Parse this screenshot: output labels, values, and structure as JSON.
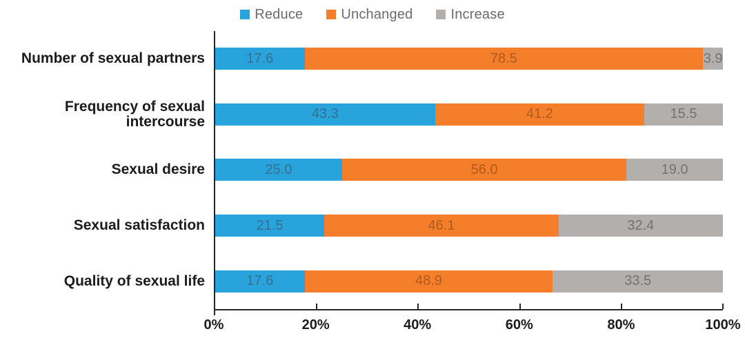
{
  "chart_data": {
    "type": "bar",
    "orientation": "horizontal",
    "stacked": true,
    "title": "",
    "xlabel": "",
    "ylabel": "",
    "xlim": [
      0,
      100
    ],
    "grid": false,
    "legend_position": "top-center",
    "categories": [
      "Number of sexual partners",
      "Frequency of sexual intercourse",
      "Sexual desire",
      "Sexual satisfaction",
      "Quality of sexual life"
    ],
    "series": [
      {
        "name": "Reduce",
        "color": "#29A3DC",
        "label_color": "#35708E",
        "values": [
          17.6,
          43.3,
          25.0,
          21.5,
          17.6
        ]
      },
      {
        "name": "Unchanged",
        "color": "#F57E2B",
        "label_color": "#AE5B21",
        "values": [
          78.5,
          41.2,
          56.0,
          46.1,
          48.9
        ]
      },
      {
        "name": "Increase",
        "color": "#B2AFAC",
        "label_color": "#757170",
        "values": [
          3.9,
          15.5,
          19.0,
          32.4,
          33.5
        ]
      }
    ],
    "x_ticks": [
      {
        "value": 0,
        "label": "0%"
      },
      {
        "value": 20,
        "label": "20%"
      },
      {
        "value": 40,
        "label": "40%"
      },
      {
        "value": 60,
        "label": "60%"
      },
      {
        "value": 80,
        "label": "80%"
      },
      {
        "value": 100,
        "label": "100%"
      }
    ],
    "value_label_decimals": 1,
    "axis_color": "#262626",
    "category_text_color": "#1c1c1c",
    "legend_text_color": "#6b6b6b"
  }
}
